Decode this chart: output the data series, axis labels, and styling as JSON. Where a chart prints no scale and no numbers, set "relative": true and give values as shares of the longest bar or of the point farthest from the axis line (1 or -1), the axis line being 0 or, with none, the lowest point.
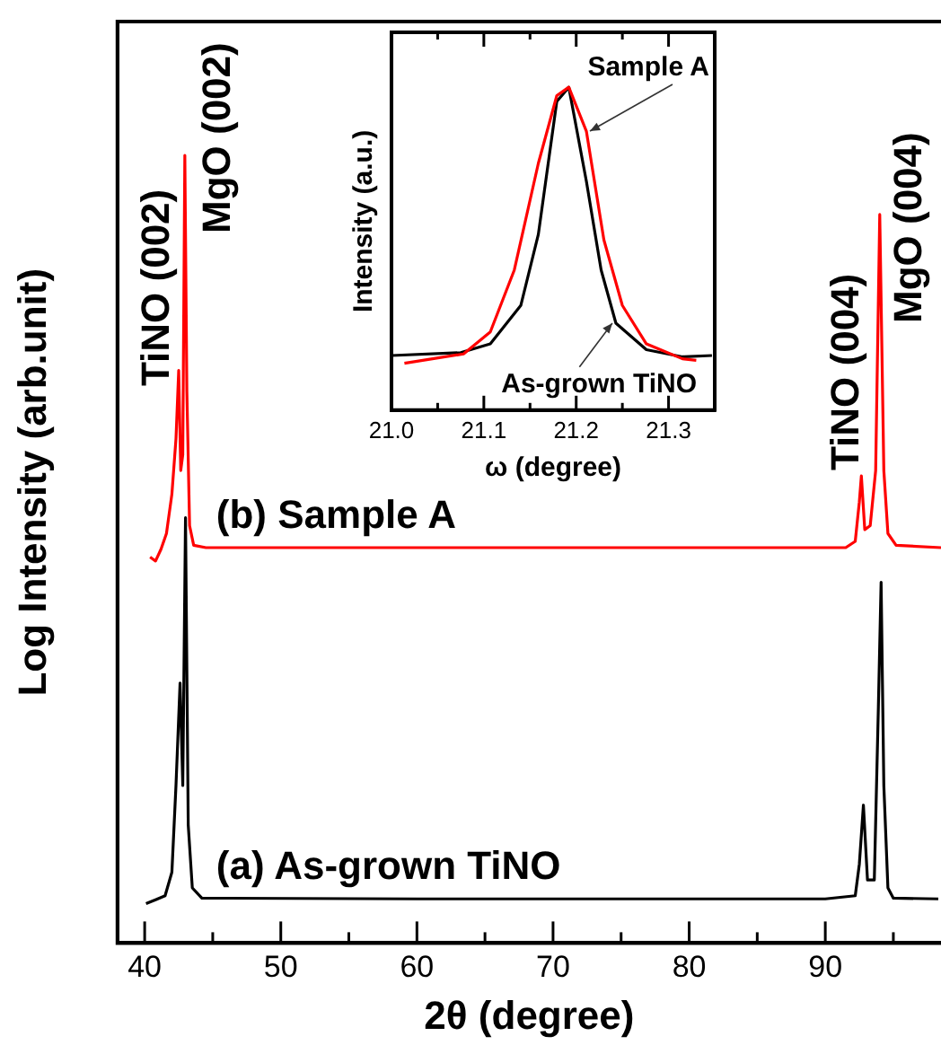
{
  "chart_data": [
    {
      "type": "line",
      "xlabel": "2θ (degree)",
      "ylabel": "Log Intensity (arb.unit)",
      "relative": true,
      "xlim": [
        38,
        98.5
      ],
      "xticks": [
        40,
        {
          "value": 45,
          "label": null
        },
        50,
        {
          "value": 55,
          "label": null
        },
        60,
        {
          "value": 65,
          "label": null
        },
        70,
        {
          "value": 75,
          "label": null
        },
        80,
        {
          "value": 85,
          "label": null
        },
        90,
        {
          "value": 95,
          "label": null
        }
      ],
      "annotations": [
        "TiNO (002)",
        "MgO (002)",
        "TiNO (004)",
        "MgO (004)"
      ],
      "series": [
        {
          "name": "(b) Sample A",
          "color": "#ff0000",
          "x": [
            40.4,
            40.8,
            41.2,
            41.6,
            42.0,
            42.3,
            42.5,
            42.65,
            42.8,
            42.95,
            43.1,
            43.3,
            43.6,
            44.5,
            60,
            80,
            91.5,
            92.2,
            92.5,
            92.65,
            92.9,
            93.3,
            93.7,
            94.0,
            94.3,
            94.6,
            95.2,
            98.5
          ],
          "values": [
            0.49,
            0.485,
            0.5,
            0.52,
            0.57,
            0.64,
            0.727,
            0.6,
            0.62,
            1.0,
            0.7,
            0.53,
            0.505,
            0.502,
            0.502,
            0.502,
            0.502,
            0.51,
            0.56,
            0.593,
            0.525,
            0.53,
            0.6,
            0.925,
            0.6,
            0.52,
            0.505,
            0.502
          ]
        },
        {
          "name": "(a) As-grown TiNO",
          "color": "#000000",
          "x": [
            40.1,
            40.8,
            41.5,
            42.0,
            42.3,
            42.6,
            42.8,
            43.0,
            43.2,
            43.5,
            44.2,
            60,
            90,
            92.2,
            92.5,
            92.8,
            93.1,
            93.6,
            93.9,
            94.1,
            94.3,
            94.6,
            95.0,
            98.3
          ],
          "values": [
            0.05,
            0.055,
            0.06,
            0.09,
            0.2,
            0.33,
            0.2,
            0.54,
            0.15,
            0.07,
            0.057,
            0.056,
            0.056,
            0.06,
            0.1,
            0.175,
            0.08,
            0.08,
            0.3,
            0.458,
            0.2,
            0.07,
            0.057,
            0.056
          ]
        }
      ]
    },
    {
      "type": "line",
      "xlabel": "ω (degree)",
      "ylabel": "Intensity (a.u.)",
      "relative": true,
      "annotations": [
        {
          "text": "Sample A",
          "x": 21.211,
          "y": 0.864
        },
        {
          "text": "As-grown TiNO",
          "x": 21.243,
          "y": 0.269
        }
      ],
      "xlim": [
        21.0,
        21.35
      ],
      "xticks": [
        {
          "value": 21.0,
          "label": "21.0"
        },
        {
          "value": 21.05,
          "label": null
        },
        {
          "value": 21.1,
          "label": "21.1"
        },
        {
          "value": 21.15,
          "label": null
        },
        {
          "value": 21.2,
          "label": "21.2"
        },
        {
          "value": 21.25,
          "label": null
        },
        {
          "value": 21.3,
          "label": "21.3"
        }
      ],
      "series": [
        {
          "color": "#ff0000",
          "x": [
            21.014,
            21.078,
            21.107,
            21.133,
            21.159,
            21.179,
            21.192,
            21.211,
            21.23,
            21.25,
            21.276,
            21.315,
            21.33
          ],
          "values": [
            0.145,
            0.174,
            0.242,
            0.434,
            0.764,
            0.974,
            1.0,
            0.864,
            0.527,
            0.324,
            0.205,
            0.159,
            0.154
          ]
        },
        {
          "color": "#000000",
          "x": [
            21.0,
            21.075,
            21.107,
            21.14,
            21.159,
            21.179,
            21.192,
            21.211,
            21.227,
            21.243,
            21.276,
            21.315,
            21.347
          ],
          "values": [
            0.169,
            0.178,
            0.205,
            0.324,
            0.544,
            0.956,
            1.0,
            0.709,
            0.434,
            0.269,
            0.187,
            0.165,
            0.169
          ]
        }
      ]
    }
  ]
}
